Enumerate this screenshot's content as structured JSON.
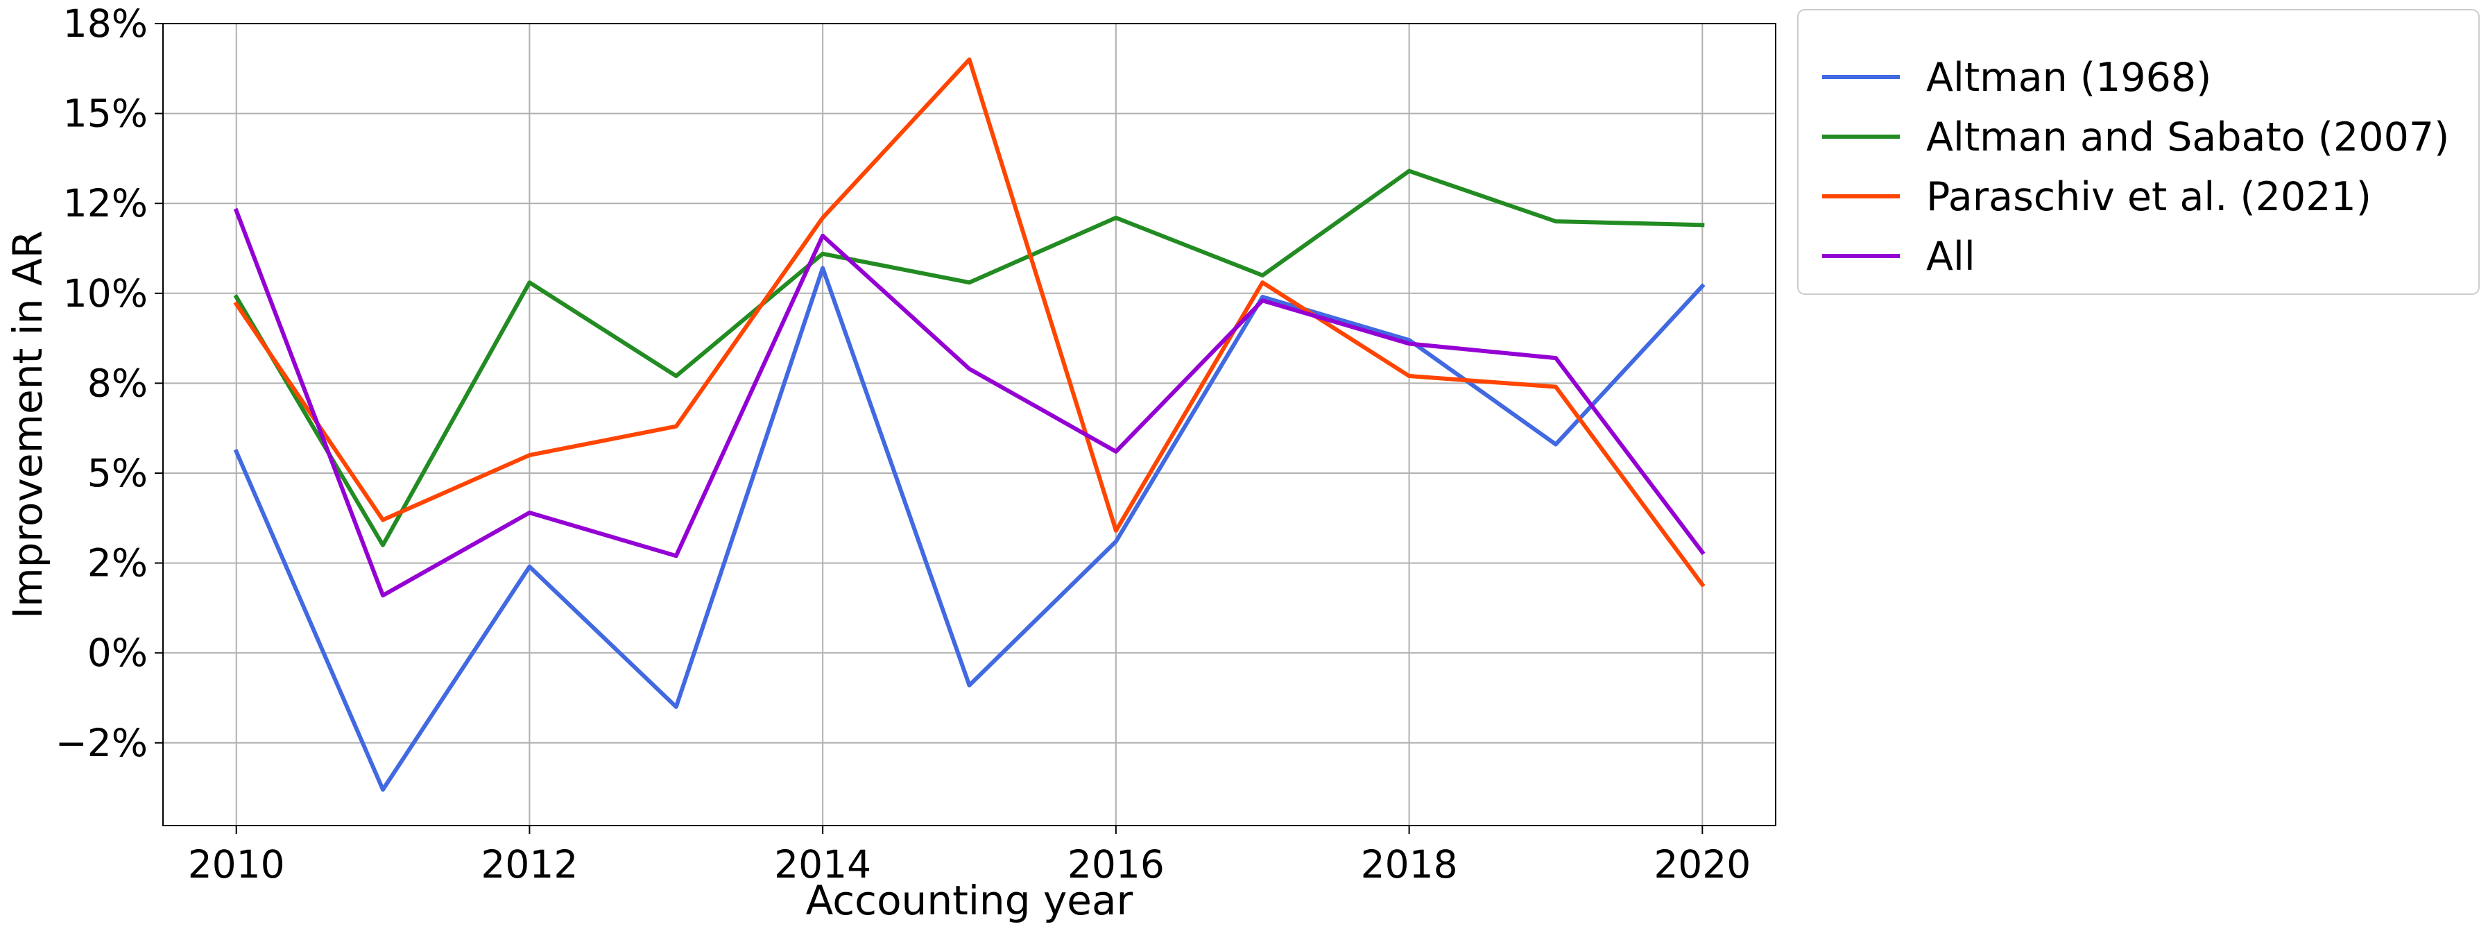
{
  "chart_data": {
    "type": "line",
    "title": "",
    "xlabel": "Accounting year",
    "ylabel": "Improvement in AR",
    "x": [
      2010,
      2011,
      2012,
      2013,
      2014,
      2015,
      2016,
      2017,
      2018,
      2019,
      2020
    ],
    "xticks": [
      2010,
      2012,
      2014,
      2016,
      2018,
      2020
    ],
    "xtick_labels": [
      "2010",
      "2012",
      "2014",
      "2016",
      "2018",
      "2020"
    ],
    "xlim": [
      2009.5,
      2020.5
    ],
    "yticks": [
      -0.025,
      0.0,
      0.025,
      0.05,
      0.075,
      0.1,
      0.125,
      0.15,
      0.175
    ],
    "ytick_labels": [
      "−2%",
      "0%",
      "2%",
      "5%",
      "8%",
      "10%",
      "12%",
      "15%",
      "18%"
    ],
    "ylim": [
      -0.048,
      0.175
    ],
    "grid": true,
    "legend_position": "outside-top-right",
    "series": [
      {
        "name": "Altman (1968)",
        "color": "#4169E1",
        "values": [
          0.056,
          -0.038,
          0.024,
          -0.015,
          0.107,
          -0.009,
          0.031,
          0.099,
          0.087,
          0.058,
          0.102
        ]
      },
      {
        "name": "Altman and Sabato (2007)",
        "color": "#228B22",
        "values": [
          0.099,
          0.03,
          0.103,
          0.077,
          0.111,
          0.103,
          0.121,
          0.105,
          0.134,
          0.12,
          0.119
        ]
      },
      {
        "name": "Paraschiv et al. (2021)",
        "color": "#FF4500",
        "values": [
          0.097,
          0.037,
          0.055,
          0.063,
          0.121,
          0.165,
          0.034,
          0.103,
          0.077,
          0.074,
          0.019
        ]
      },
      {
        "name": "All",
        "color": "#9400D3",
        "values": [
          0.123,
          0.016,
          0.039,
          0.027,
          0.116,
          0.079,
          0.056,
          0.098,
          0.086,
          0.082,
          0.028
        ]
      }
    ]
  }
}
